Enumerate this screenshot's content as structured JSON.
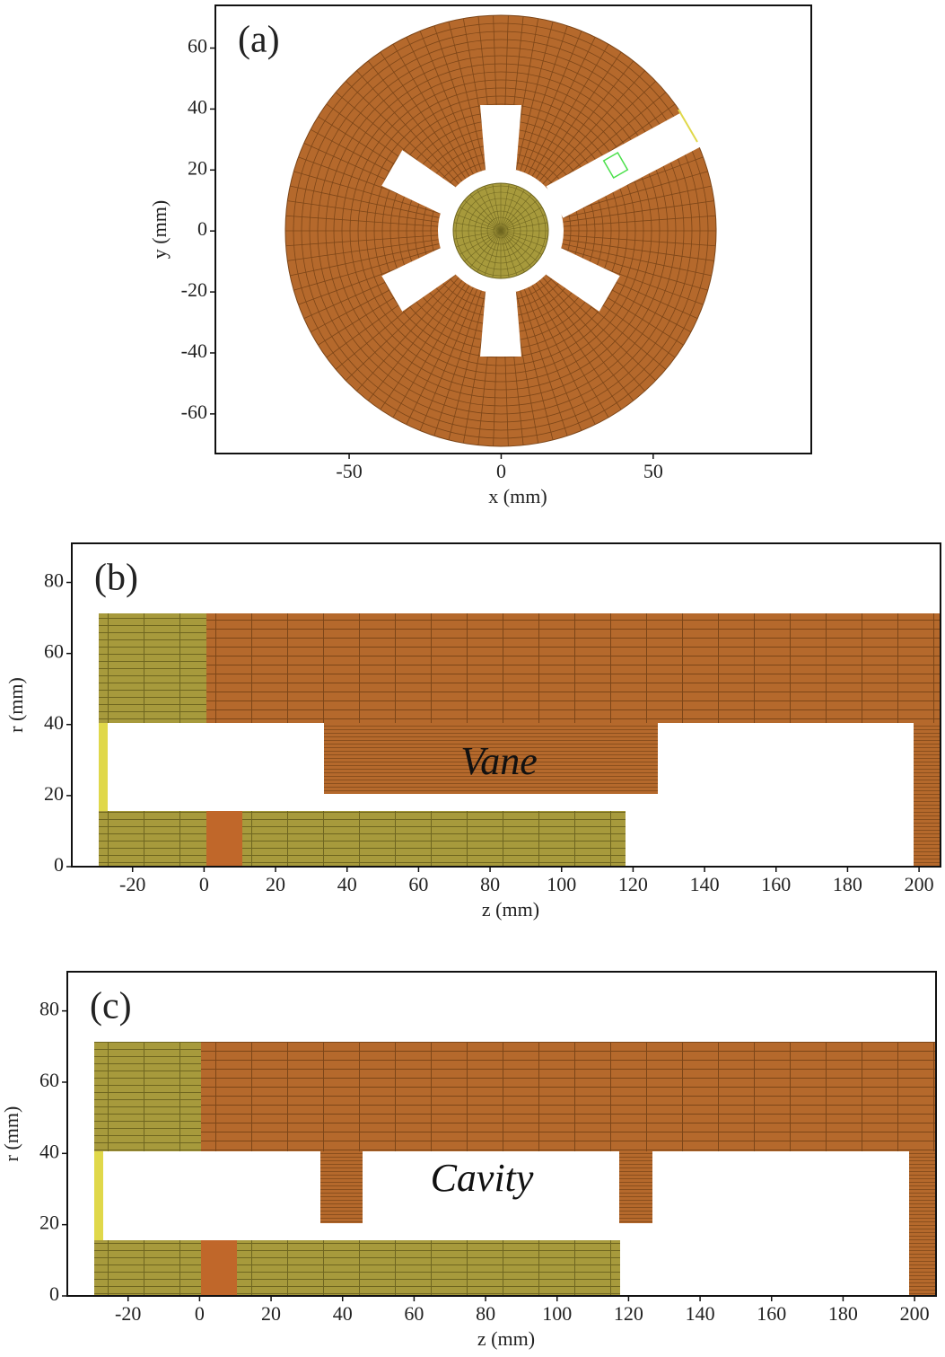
{
  "chart_data": [
    {
      "type": "mesh",
      "panel_label": "(a)",
      "x_label": "x (mm)",
      "y_label": "y (mm)",
      "xlim": [
        -94,
        102
      ],
      "ylim": [
        -73,
        74
      ],
      "xticks": [
        -50,
        0,
        50
      ],
      "yticks": [
        -60,
        -40,
        -20,
        0,
        20,
        40,
        60
      ]
    },
    {
      "type": "mesh",
      "panel_label": "(b)",
      "x_label": "z (mm)",
      "y_label": "r (mm)",
      "annotation": "Vane",
      "xlim": [
        -37,
        206
      ],
      "ylim": [
        0,
        91
      ],
      "xticks": [
        -20,
        0,
        20,
        40,
        60,
        80,
        100,
        120,
        140,
        160,
        180,
        200
      ],
      "yticks": [
        0,
        20,
        40,
        60,
        80
      ]
    },
    {
      "type": "mesh",
      "panel_label": "(c)",
      "x_label": "z (mm)",
      "y_label": "r (mm)",
      "annotation": "Cavity",
      "xlim": [
        -37,
        206
      ],
      "ylim": [
        0,
        91
      ],
      "xticks": [
        -20,
        0,
        20,
        40,
        60,
        80,
        100,
        120,
        140,
        160,
        180,
        200
      ],
      "yticks": [
        0,
        20,
        40,
        60,
        80
      ]
    }
  ]
}
